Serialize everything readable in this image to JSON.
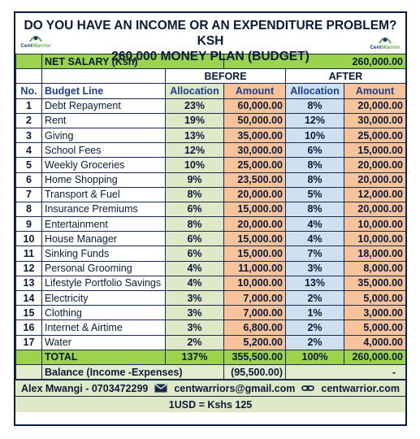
{
  "title_line1": "DO YOU HAVE AN INCOME OR AN EXPENDITURE PROBLEM? KSH",
  "title_line2": "260,000 MONEY PLAN (BUDGET)",
  "logo_text": "Cent",
  "logo_text_accent": "Warrior",
  "net_salary_label": "NET SALARY (Ksh)",
  "net_salary_value": "260,000.00",
  "group_before": "BEFORE",
  "group_after": "AFTER",
  "col_no": "No.",
  "col_line": "Budget Line",
  "col_alloc": "Allocation",
  "col_amount": "Amount",
  "rows": [
    {
      "no": "1",
      "line": "Debt Repayment",
      "b_alloc": "23%",
      "b_amt": "60,000.00",
      "a_alloc": "8%",
      "a_amt": "20,000.00"
    },
    {
      "no": "2",
      "line": "Rent",
      "b_alloc": "19%",
      "b_amt": "50,000.00",
      "a_alloc": "12%",
      "a_amt": "30,000.00"
    },
    {
      "no": "3",
      "line": "Giving",
      "b_alloc": "13%",
      "b_amt": "35,000.00",
      "a_alloc": "10%",
      "a_amt": "25,000.00"
    },
    {
      "no": "4",
      "line": "School Fees",
      "b_alloc": "12%",
      "b_amt": "30,000.00",
      "a_alloc": "6%",
      "a_amt": "15,000.00"
    },
    {
      "no": "5",
      "line": "Weekly Groceries",
      "b_alloc": "10%",
      "b_amt": "25,000.00",
      "a_alloc": "8%",
      "a_amt": "20,000.00"
    },
    {
      "no": "6",
      "line": "Home Shopping",
      "b_alloc": "9%",
      "b_amt": "23,500.00",
      "a_alloc": "8%",
      "a_amt": "20,000.00"
    },
    {
      "no": "7",
      "line": "Transport & Fuel",
      "b_alloc": "8%",
      "b_amt": "20,000.00",
      "a_alloc": "5%",
      "a_amt": "12,000.00"
    },
    {
      "no": "8",
      "line": "Insurance Premiums",
      "b_alloc": "6%",
      "b_amt": "15,000.00",
      "a_alloc": "8%",
      "a_amt": "20,000.00"
    },
    {
      "no": "9",
      "line": "Entertainment",
      "b_alloc": "8%",
      "b_amt": "20,000.00",
      "a_alloc": "4%",
      "a_amt": "10,000.00"
    },
    {
      "no": "10",
      "line": "House Manager",
      "b_alloc": "6%",
      "b_amt": "15,000.00",
      "a_alloc": "4%",
      "a_amt": "10,000.00"
    },
    {
      "no": "11",
      "line": "Sinking Funds",
      "b_alloc": "6%",
      "b_amt": "15,000.00",
      "a_alloc": "7%",
      "a_amt": "18,000.00"
    },
    {
      "no": "12",
      "line": "Personal Grooming",
      "b_alloc": "4%",
      "b_amt": "11,000.00",
      "a_alloc": "3%",
      "a_amt": "8,000.00"
    },
    {
      "no": "13",
      "line": "Lifestyle Portfolio Savings",
      "b_alloc": "4%",
      "b_amt": "10,000.00",
      "a_alloc": "13%",
      "a_amt": "35,000.00"
    },
    {
      "no": "14",
      "line": "Electricity",
      "b_alloc": "3%",
      "b_amt": "7,000.00",
      "a_alloc": "2%",
      "a_amt": "5,000.00"
    },
    {
      "no": "15",
      "line": "Clothing",
      "b_alloc": "3%",
      "b_amt": "7,000.00",
      "a_alloc": "1%",
      "a_amt": "3,000.00"
    },
    {
      "no": "16",
      "line": "Internet & Airtime",
      "b_alloc": "3%",
      "b_amt": "6,800.00",
      "a_alloc": "2%",
      "a_amt": "5,000.00"
    },
    {
      "no": "17",
      "line": "Water",
      "b_alloc": "2%",
      "b_amt": "5,200.00",
      "a_alloc": "2%",
      "a_amt": "4,000.00"
    }
  ],
  "total": {
    "label": "TOTAL",
    "b_alloc": "137%",
    "b_amt": "355,500.00",
    "a_alloc": "100%",
    "a_amt": "260,000.00"
  },
  "balance": {
    "label": "Balance (Income -Expenses)",
    "before": "(95,500.00)",
    "after": "-"
  },
  "footer": {
    "name_phone": "Alex Mwangi - 0703472299",
    "email": "centwarriors@gmail.com",
    "website": "centwarrior.com",
    "rate": "1USD = Kshs 125"
  },
  "colors": {
    "header_green": "#9bd34f",
    "before_alloc": "#dfe9c8",
    "amount_orange": "#f7c39a",
    "after_alloc": "#cfe0f0",
    "border_navy": "#0b1f44"
  }
}
